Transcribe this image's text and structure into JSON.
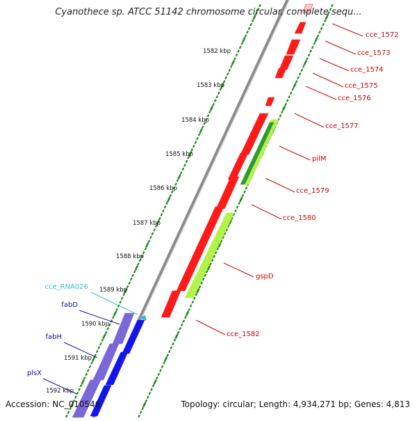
{
  "title": "Cyanothece sp. ATCC 51142 chromosome circular, complete sequ...",
  "footer": {
    "accession": "Accession: NC_010546",
    "topology": "Topology: circular; Length: 4,934,271 bp; Genes: 4,813"
  },
  "colors": {
    "backbone": "#8c8c8c",
    "tick": "#1a8a1a",
    "red_gene": "#ff1a1a",
    "lime_gene": "#b4f24a",
    "darkgreen_gene": "#2f9a2f",
    "purple_gene": "#7b68d8",
    "blue_gene": "#1414f0",
    "red_label": "#cc0000",
    "blue_label": "#1010b0",
    "cyan_label": "#33bbe0"
  },
  "kbp_labels": [
    "1582 kbp",
    "1583 kbp",
    "1584 kbp",
    "1585 kbp",
    "1586 kbp",
    "1587 kbp",
    "1588 kbp",
    "1589 kbp",
    "1590 kbp",
    "1591 kbp",
    "1592 kbp"
  ],
  "gene_labels_right": [
    "cce_1572",
    "cce_1573",
    "cce_1574",
    "cce_1575",
    "cce_1576",
    "cce_1577",
    "pilM",
    "cce_1579",
    "cce_1580",
    "gspD",
    "cce_1582"
  ],
  "gene_labels_left": [
    "cce_RNA026",
    "fabD",
    "fabH",
    "plsX"
  ]
}
